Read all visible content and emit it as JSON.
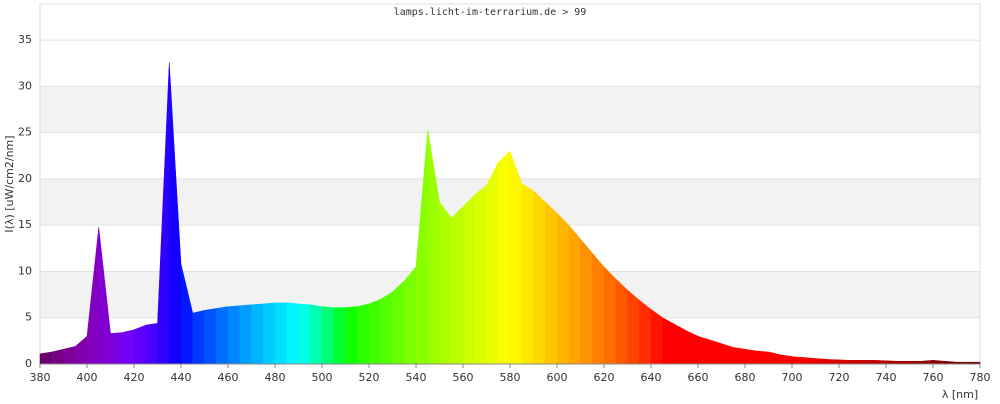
{
  "chart_data": {
    "type": "spectrum",
    "title": "lamps.licht-im-terrarium.de > 99",
    "x_label": "λ [nm]",
    "y_label": "I(λ)  [uW/cm2/nm]",
    "x": [
      380,
      385,
      390,
      395,
      400,
      405,
      410,
      415,
      420,
      425,
      430,
      435,
      440,
      445,
      450,
      455,
      460,
      465,
      470,
      475,
      480,
      485,
      490,
      495,
      500,
      505,
      510,
      515,
      520,
      525,
      530,
      535,
      540,
      545,
      550,
      555,
      560,
      565,
      570,
      575,
      580,
      585,
      590,
      595,
      600,
      605,
      610,
      615,
      620,
      625,
      630,
      635,
      640,
      645,
      650,
      655,
      660,
      665,
      670,
      675,
      680,
      685,
      690,
      695,
      700,
      705,
      710,
      715,
      720,
      725,
      730,
      735,
      740,
      745,
      750,
      755,
      760,
      765,
      770,
      775,
      780
    ],
    "values": [
      1.1,
      1.3,
      1.6,
      1.9,
      3.0,
      14.8,
      3.3,
      3.4,
      3.7,
      4.2,
      4.4,
      32.6,
      10.8,
      5.5,
      5.8,
      6.0,
      6.2,
      6.3,
      6.4,
      6.5,
      6.6,
      6.6,
      6.5,
      6.4,
      6.2,
      6.1,
      6.1,
      6.2,
      6.5,
      7.0,
      7.8,
      9.0,
      10.5,
      25.3,
      17.5,
      15.8,
      17.0,
      18.3,
      19.3,
      21.8,
      23.0,
      19.5,
      18.7,
      17.5,
      16.3,
      15.0,
      13.5,
      12.0,
      10.5,
      9.2,
      8.0,
      6.9,
      5.9,
      5.0,
      4.3,
      3.6,
      3.0,
      2.6,
      2.2,
      1.8,
      1.6,
      1.4,
      1.3,
      1.0,
      0.8,
      0.7,
      0.6,
      0.5,
      0.45,
      0.4,
      0.4,
      0.4,
      0.35,
      0.3,
      0.3,
      0.3,
      0.4,
      0.3,
      0.2,
      0.2,
      0.2
    ],
    "xlim": [
      380,
      780
    ],
    "ylim": [
      0,
      38.9
    ],
    "xticks": [
      380,
      400,
      420,
      440,
      460,
      480,
      500,
      520,
      540,
      560,
      580,
      600,
      620,
      640,
      660,
      680,
      700,
      720,
      740,
      760,
      780
    ],
    "yticks": [
      0,
      5,
      10,
      15,
      20,
      25,
      30,
      35
    ],
    "grid": true
  }
}
